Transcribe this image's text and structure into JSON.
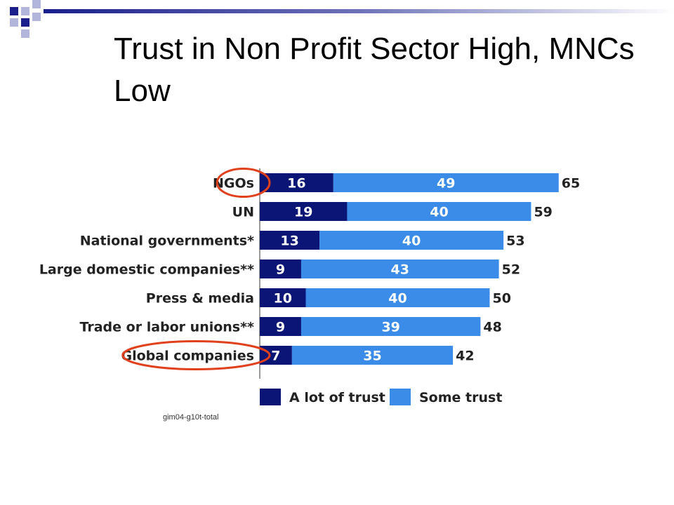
{
  "slide": {
    "title": "Trust in Non Profit Sector High, MNCs Low"
  },
  "colors": {
    "a_lot": "#0a1575",
    "some": "#3a8ce8",
    "highlight": "#e0401c",
    "deco_dark": "#1a1f8c",
    "deco_light": "#b3b6dc"
  },
  "chart_data": {
    "type": "bar",
    "orientation": "horizontal",
    "stacked": true,
    "title": "",
    "xlabel": "",
    "ylabel": "",
    "xlim": [
      0,
      70
    ],
    "grid": false,
    "legend_position": "bottom",
    "categories": [
      "NGOs",
      "UN",
      "National governments*",
      "Large domestic companies**",
      "Press & media",
      "Trade or labor unions**",
      "Global companies"
    ],
    "series": [
      {
        "name": "A lot of trust",
        "values": [
          16,
          19,
          13,
          9,
          10,
          9,
          7
        ]
      },
      {
        "name": "Some trust",
        "values": [
          49,
          40,
          40,
          43,
          40,
          39,
          35
        ]
      }
    ],
    "totals": [
      65,
      59,
      53,
      52,
      50,
      48,
      42
    ],
    "highlighted_categories": [
      "NGOs",
      "Global companies"
    ],
    "source_note": "gim04-g10t-total"
  }
}
